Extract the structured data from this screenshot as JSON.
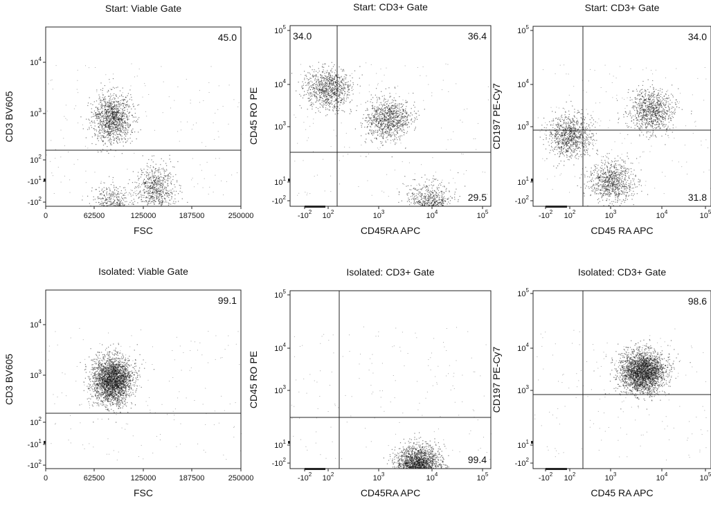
{
  "figure": {
    "panels": [
      {
        "title": "Start: Viable Gate",
        "xlabel": "FSC",
        "ylabel": "CD3 BV605",
        "x_ticks": [
          "0",
          "62500",
          "125000",
          "187500",
          "250000"
        ],
        "y_ticks": [
          {
            "base": "10",
            "exp": "4"
          },
          {
            "base": "10",
            "exp": "3"
          },
          {
            "base": "10",
            "exp": "2"
          },
          {
            "base": "-10",
            "exp": "1"
          },
          {
            "base": "-10",
            "exp": "2"
          }
        ],
        "gate_values": [
          {
            "corner": "top-right",
            "text": "45.0"
          }
        ]
      },
      {
        "title": "Start: CD3+ Gate",
        "xlabel": "CD45RA APC",
        "ylabel": "CD45 RO PE",
        "x_ticks": [
          {
            "base": "-10",
            "exp": "2"
          },
          {
            "base": "10",
            "exp": "2"
          },
          {
            "base": "10",
            "exp": "3"
          },
          {
            "base": "10",
            "exp": "4"
          },
          {
            "base": "10",
            "exp": "5"
          }
        ],
        "y_ticks": [
          {
            "base": "10",
            "exp": "5"
          },
          {
            "base": "10",
            "exp": "4"
          },
          {
            "base": "10",
            "exp": "3"
          },
          {
            "base": "10",
            "exp": "1"
          },
          {
            "base": "-10",
            "exp": "2"
          }
        ],
        "gate_values": [
          {
            "corner": "top-left",
            "text": "34.0"
          },
          {
            "corner": "top-right",
            "text": "36.4"
          },
          {
            "corner": "bottom-right",
            "text": "29.5"
          }
        ]
      },
      {
        "title": "Start: CD3+ Gate",
        "xlabel": "CD45 RA APC",
        "ylabel": "CD197 PE-Cy7",
        "x_ticks": [
          {
            "base": "-10",
            "exp": "2"
          },
          {
            "base": "10",
            "exp": "2"
          },
          {
            "base": "10",
            "exp": "3"
          },
          {
            "base": "10",
            "exp": "4"
          },
          {
            "base": "10",
            "exp": "5"
          }
        ],
        "y_ticks": [
          {
            "base": "10",
            "exp": "5"
          },
          {
            "base": "10",
            "exp": "4"
          },
          {
            "base": "10",
            "exp": "3"
          },
          {
            "base": "10",
            "exp": "1"
          },
          {
            "base": "-10",
            "exp": "2"
          }
        ],
        "gate_values": [
          {
            "corner": "top-right",
            "text": "34.0"
          },
          {
            "corner": "bottom-right",
            "text": "31.8"
          }
        ]
      },
      {
        "title": "Isolated: Viable Gate",
        "xlabel": "FSC",
        "ylabel": "CD3 BV605",
        "x_ticks": [
          "0",
          "62500",
          "125000",
          "187500",
          "250000"
        ],
        "y_ticks": [
          {
            "base": "10",
            "exp": "4"
          },
          {
            "base": "10",
            "exp": "3"
          },
          {
            "base": "10",
            "exp": "2"
          },
          {
            "base": "-10",
            "exp": "1"
          },
          {
            "base": "-10",
            "exp": "2"
          }
        ],
        "gate_values": [
          {
            "corner": "top-right",
            "text": "99.1"
          }
        ]
      },
      {
        "title": "Isolated: CD3+ Gate",
        "xlabel": "CD45RA APC",
        "ylabel": "CD45 RO PE",
        "x_ticks": [
          {
            "base": "-10",
            "exp": "2"
          },
          {
            "base": "10",
            "exp": "2"
          },
          {
            "base": "10",
            "exp": "3"
          },
          {
            "base": "10",
            "exp": "4"
          },
          {
            "base": "10",
            "exp": "5"
          }
        ],
        "y_ticks": [
          {
            "base": "10",
            "exp": "5"
          },
          {
            "base": "10",
            "exp": "4"
          },
          {
            "base": "10",
            "exp": "3"
          },
          {
            "base": "10",
            "exp": "1"
          },
          {
            "base": "-10",
            "exp": "2"
          }
        ],
        "gate_values": [
          {
            "corner": "bottom-right",
            "text": "99.4"
          }
        ]
      },
      {
        "title": "Isolated: CD3+ Gate",
        "xlabel": "CD45 RA APC",
        "ylabel": "CD197 PE-Cy7",
        "x_ticks": [
          {
            "base": "-10",
            "exp": "2"
          },
          {
            "base": "10",
            "exp": "2"
          },
          {
            "base": "10",
            "exp": "3"
          },
          {
            "base": "10",
            "exp": "4"
          },
          {
            "base": "10",
            "exp": "5"
          }
        ],
        "y_ticks": [
          {
            "base": "10",
            "exp": "5"
          },
          {
            "base": "10",
            "exp": "4"
          },
          {
            "base": "10",
            "exp": "3"
          },
          {
            "base": "10",
            "exp": "1"
          },
          {
            "base": "-10",
            "exp": "2"
          }
        ],
        "gate_values": [
          {
            "corner": "top-right",
            "text": "98.6"
          }
        ]
      }
    ]
  },
  "chart_data": [
    {
      "type": "scatter",
      "title": "Start: Viable Gate",
      "xlabel": "FSC",
      "ylabel": "CD3 BV605",
      "x_scale": "linear",
      "y_scale": "biexponential",
      "xlim": [
        0,
        250000
      ],
      "gate_percentages": {
        "upper": 45.0
      },
      "populations": [
        {
          "x": 85000,
          "y": 800,
          "share": 0.45
        },
        {
          "x": 85000,
          "y": 8,
          "share": 0.3
        },
        {
          "x": 140000,
          "y": 25,
          "share": 0.25
        }
      ]
    },
    {
      "type": "scatter",
      "title": "Start: CD3+ Gate",
      "xlabel": "CD45RA APC",
      "ylabel": "CD45 RO PE",
      "x_scale": "biexponential",
      "y_scale": "biexponential",
      "gate_percentages": {
        "upper-left": 34.0,
        "upper-right": 36.4,
        "lower-right": 29.5
      },
      "populations": [
        {
          "x": 0,
          "y": 8000,
          "share": 0.34
        },
        {
          "x": 1500,
          "y": 1500,
          "share": 0.36
        },
        {
          "x": 10000,
          "y": 15,
          "share": 0.3
        }
      ]
    },
    {
      "type": "scatter",
      "title": "Start: CD3+ Gate",
      "xlabel": "CD45 RA APC",
      "ylabel": "CD197 PE-Cy7",
      "x_scale": "biexponential",
      "y_scale": "biexponential",
      "gate_percentages": {
        "upper-right": 34.0,
        "lower-right": 31.8
      },
      "populations": [
        {
          "x": 0,
          "y": 600,
          "share": 0.34
        },
        {
          "x": 10000,
          "y": 2500,
          "share": 0.34
        },
        {
          "x": 1000,
          "y": 50,
          "share": 0.32
        }
      ]
    },
    {
      "type": "scatter",
      "title": "Isolated: Viable Gate",
      "xlabel": "FSC",
      "ylabel": "CD3 BV605",
      "x_scale": "linear",
      "y_scale": "biexponential",
      "xlim": [
        0,
        250000
      ],
      "gate_percentages": {
        "upper": 99.1
      },
      "populations": [
        {
          "x": 85000,
          "y": 800,
          "share": 1.0
        }
      ]
    },
    {
      "type": "scatter",
      "title": "Isolated: CD3+ Gate",
      "xlabel": "CD45RA APC",
      "ylabel": "CD45 RO PE",
      "x_scale": "biexponential",
      "y_scale": "biexponential",
      "gate_percentages": {
        "lower-right": 99.4
      },
      "populations": [
        {
          "x": 6000,
          "y": 15,
          "share": 1.0
        }
      ]
    },
    {
      "type": "scatter",
      "title": "Isolated: CD3+ Gate",
      "xlabel": "CD45 RA APC",
      "ylabel": "CD197 PE-Cy7",
      "x_scale": "biexponential",
      "y_scale": "biexponential",
      "gate_percentages": {
        "upper-right": 98.6
      },
      "populations": [
        {
          "x": 6000,
          "y": 2800,
          "share": 1.0
        }
      ]
    }
  ]
}
